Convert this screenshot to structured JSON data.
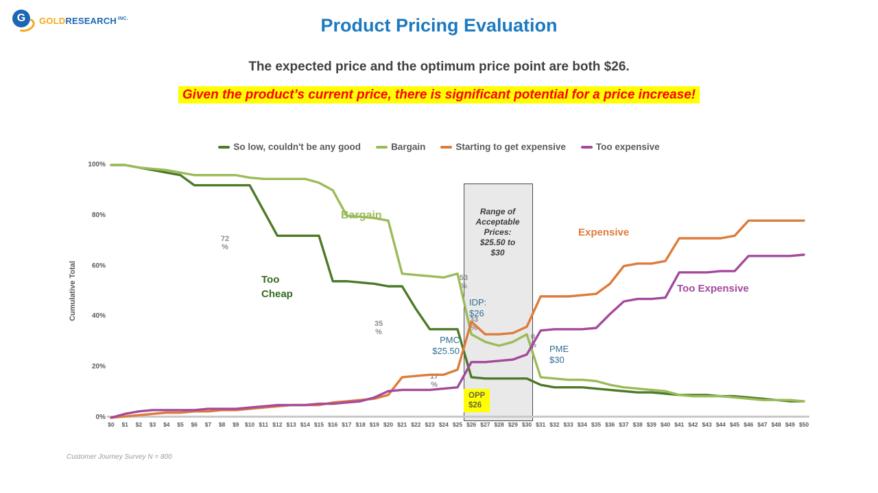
{
  "header": {
    "logo": {
      "icon_letter": "G",
      "brand_gold": "GOLD",
      "brand_rest": "RESEARCH",
      "brand_suffix": "INC."
    },
    "title": "Product Pricing Evaluation",
    "subtitle": "The expected price and the optimum price point are both $26.",
    "highlight": "Given the product’s current price, there is significant potential for a price increase!"
  },
  "footer": {
    "note": "Customer Journey Survey N = 800"
  },
  "chart_data": {
    "type": "line",
    "title": "",
    "ylabel": "Cumulative Total",
    "ylim": [
      0,
      100
    ],
    "grid": false,
    "legend_position": "top",
    "legend": [
      {
        "label": "So low, couldn't be any good",
        "color": "#4C7A28"
      },
      {
        "label": "Bargain",
        "color": "#9BBB59"
      },
      {
        "label": "Starting to get expensive",
        "color": "#DD7B3B"
      },
      {
        "label": "Too expensive",
        "color": "#A4499C"
      }
    ],
    "x_tick_labels": [
      "$0",
      "$1",
      "$2",
      "$3",
      "$4",
      "$5",
      "$6",
      "$7",
      "$8",
      "$9",
      "$10",
      "$11",
      "$12",
      "$13",
      "$14",
      "$15",
      "$16",
      "$17",
      "$18",
      "$19",
      "$20",
      "$21",
      "$22",
      "$23",
      "$24",
      "$25",
      "$26",
      "$27",
      "$28",
      "$29",
      "$30",
      "$31",
      "$32",
      "$33",
      "$34",
      "$35",
      "$36",
      "$37",
      "$38",
      "$39",
      "$40",
      "$41",
      "$42",
      "$43",
      "$44",
      "$45",
      "$46",
      "$47",
      "$48",
      "$49",
      "$50"
    ],
    "y_ticks": [
      0,
      20,
      40,
      60,
      80,
      100
    ],
    "y_tick_labels": [
      "0%",
      "20%",
      "40%",
      "60%",
      "80%",
      "100%"
    ],
    "series": [
      {
        "name": "So low, couldn't be any good",
        "color": "#4C7A28",
        "values": [
          100,
          100,
          99,
          98,
          97,
          96,
          92,
          92,
          92,
          92,
          92,
          82,
          72,
          72,
          72,
          72,
          54,
          54,
          53.5,
          53,
          52,
          52,
          43,
          35,
          35,
          35,
          16,
          15.5,
          15.5,
          15.5,
          15.5,
          13,
          12,
          12,
          12,
          11.5,
          11,
          10.5,
          10,
          10,
          9.5,
          9,
          9,
          9,
          8.5,
          8.5,
          8,
          7.5,
          7,
          6.5,
          6.5
        ]
      },
      {
        "name": "Bargain",
        "color": "#9BBB59",
        "values": [
          100,
          100,
          99,
          98.5,
          98,
          97,
          96,
          96,
          96,
          96,
          95,
          94.5,
          94.5,
          94.5,
          94.5,
          93,
          90,
          80,
          79.5,
          79,
          78,
          57,
          56.5,
          56,
          55.5,
          57,
          33,
          30,
          28.5,
          30,
          33,
          16,
          15.5,
          15,
          15,
          14.5,
          13,
          12,
          11.5,
          11,
          10.5,
          9,
          8.5,
          8.5,
          8.5,
          8,
          7.5,
          7,
          7,
          7,
          6.5
        ]
      },
      {
        "name": "Starting to get expensive",
        "color": "#DD7B3B",
        "values": [
          0,
          0.5,
          1,
          1.5,
          2,
          2,
          2.5,
          2.5,
          3,
          3,
          3.5,
          4,
          4.5,
          5,
          5,
          5,
          6,
          6.5,
          7,
          7.5,
          9,
          16,
          16.5,
          17,
          17,
          19,
          38,
          33,
          33,
          33.5,
          36,
          48,
          48,
          48,
          48.5,
          49,
          53,
          60,
          61,
          61,
          62,
          71,
          71,
          71,
          71,
          72,
          78,
          78,
          78,
          78,
          78
        ]
      },
      {
        "name": "Too expensive",
        "color": "#A4499C",
        "values": [
          0,
          1.5,
          2.5,
          3,
          3,
          3,
          3,
          3.5,
          3.5,
          3.5,
          4,
          4.5,
          5,
          5,
          5,
          5.5,
          5.5,
          6,
          6.5,
          8,
          10.5,
          11,
          11,
          11,
          11.5,
          12,
          22,
          22,
          22.5,
          23,
          25,
          34.5,
          35,
          35,
          35,
          35.5,
          41,
          46,
          47,
          47,
          47.5,
          57.5,
          57.5,
          57.5,
          58,
          58,
          64,
          64,
          64,
          64,
          64.5
        ]
      }
    ],
    "shaded_region": {
      "from_price": 25.5,
      "to_price": 30,
      "label": "Range of\nAcceptable\nPrices:\n$25.50 to\n$30"
    },
    "annotations": {
      "bargain": "Bargain",
      "too_cheap": "Too\nCheap",
      "expensive": "Expensive",
      "too_expensive": "Too Expensive",
      "idp": "IDP:\n$26",
      "pmc": "PMC\n$25.50",
      "pme": "PME\n$30",
      "opp": "OPP\n$26",
      "p72": "72\n%",
      "p35": "35\n%",
      "p17": "17\n%",
      "p53": "53\n%",
      "p33": "33\n%",
      "p30": "0\n%"
    }
  }
}
